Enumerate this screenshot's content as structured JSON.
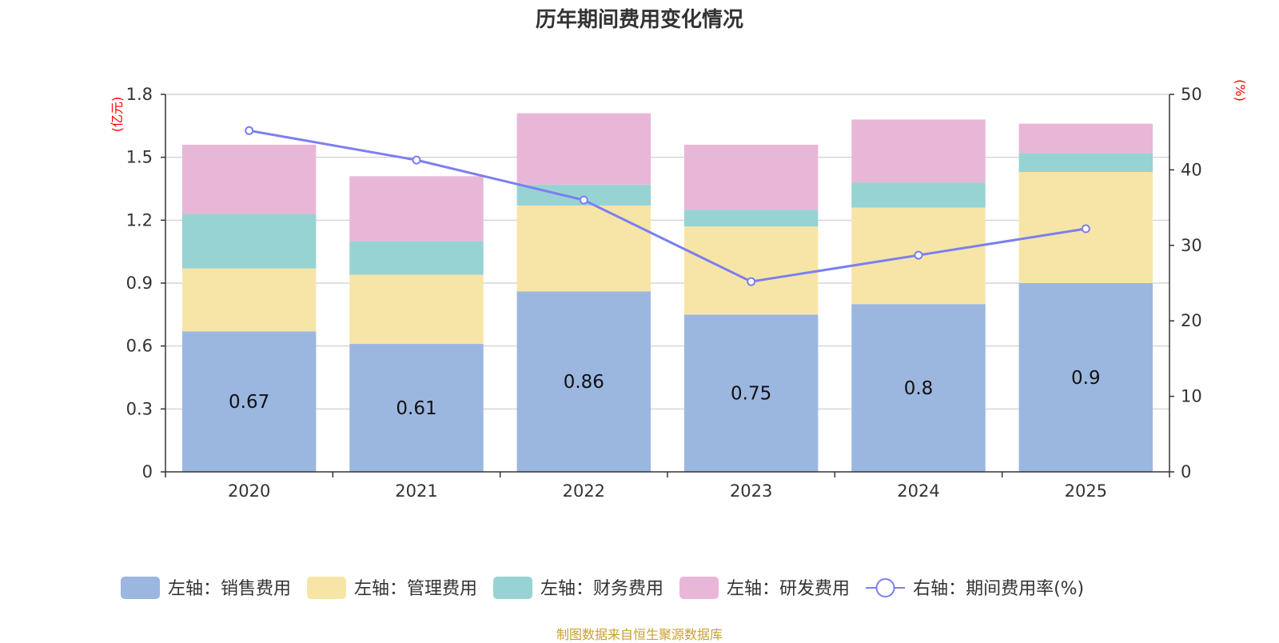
{
  "title": "历年期间费用变化情况",
  "source": "制图数据来自恒生聚源数据库",
  "colors": {
    "sales": "#9bb7e0",
    "admin": "#f7e5a8",
    "finance": "#97d3d3",
    "rnd": "#e8b7d8",
    "rate": "#7b7ff0",
    "grid": "#cccccc",
    "axis": "#333333",
    "unit": "#ff0000",
    "source": "#c8a032"
  },
  "chart_data": {
    "type": "bar",
    "stacked": true,
    "title": "历年期间费用变化情况",
    "categories": [
      "2020",
      "2021",
      "2022",
      "2023",
      "2024",
      "2025"
    ],
    "left_axis": {
      "unit_label": "(亿元)",
      "range": [
        0,
        1.8
      ],
      "ticks": [
        "0",
        "0.3",
        "0.6",
        "0.9",
        "1.2",
        "1.5",
        "1.8"
      ]
    },
    "right_axis": {
      "unit_label": "(%)",
      "range": [
        0,
        50
      ],
      "ticks": [
        "0",
        "10",
        "20",
        "30",
        "40",
        "50"
      ]
    },
    "series": [
      {
        "key": "sales",
        "name": "左轴：销售费用",
        "axis": "left",
        "type": "bar",
        "values": [
          0.67,
          0.61,
          0.86,
          0.75,
          0.8,
          0.9
        ],
        "labels": [
          "0.67",
          "0.61",
          "0.86",
          "0.75",
          "0.8",
          "0.9"
        ]
      },
      {
        "key": "admin",
        "name": "左轴：管理费用",
        "axis": "left",
        "type": "bar",
        "values": [
          0.3,
          0.33,
          0.41,
          0.42,
          0.46,
          0.53
        ]
      },
      {
        "key": "finance",
        "name": "左轴：财务费用",
        "axis": "left",
        "type": "bar",
        "values": [
          0.26,
          0.16,
          0.1,
          0.08,
          0.12,
          0.09
        ]
      },
      {
        "key": "rnd",
        "name": "左轴：研发费用",
        "axis": "left",
        "type": "bar",
        "values": [
          0.33,
          0.31,
          0.34,
          0.31,
          0.3,
          0.14
        ]
      },
      {
        "key": "rate",
        "name": "右轴：期间费用率(%)",
        "axis": "right",
        "type": "line",
        "values": [
          45.2,
          41.3,
          36.0,
          25.2,
          28.7,
          32.2
        ]
      }
    ],
    "legend_position": "bottom"
  }
}
